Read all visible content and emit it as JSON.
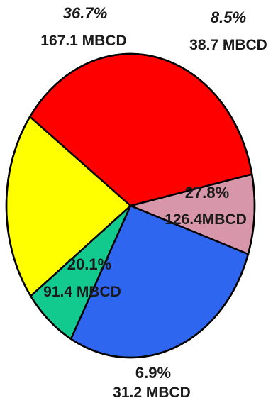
{
  "chart_data": {
    "type": "pie",
    "title": "",
    "start_angle_deg": 78,
    "direction": "clockwise",
    "slices": [
      {
        "percent": 8.5,
        "percent_label": "8.5%",
        "value": 38.7,
        "value_label": "38.7 MBCD",
        "color": "#d896aa"
      },
      {
        "percent": 27.8,
        "percent_label": "27.8%",
        "value": 126.4,
        "value_label": "126.4MBCD",
        "color": "#2f66f0"
      },
      {
        "percent": 6.9,
        "percent_label": "6.9%",
        "value": 31.2,
        "value_label": "31.2 MBCD",
        "color": "#12c98e"
      },
      {
        "percent": 20.1,
        "percent_label": "20.1%",
        "value": 91.4,
        "value_label": "91.4 MBCD",
        "color": "#ffff00"
      },
      {
        "percent": 36.7,
        "percent_label": "36.7%",
        "value": 167.1,
        "value_label": "167.1 MBCD",
        "color": "#ff0000"
      }
    ]
  }
}
